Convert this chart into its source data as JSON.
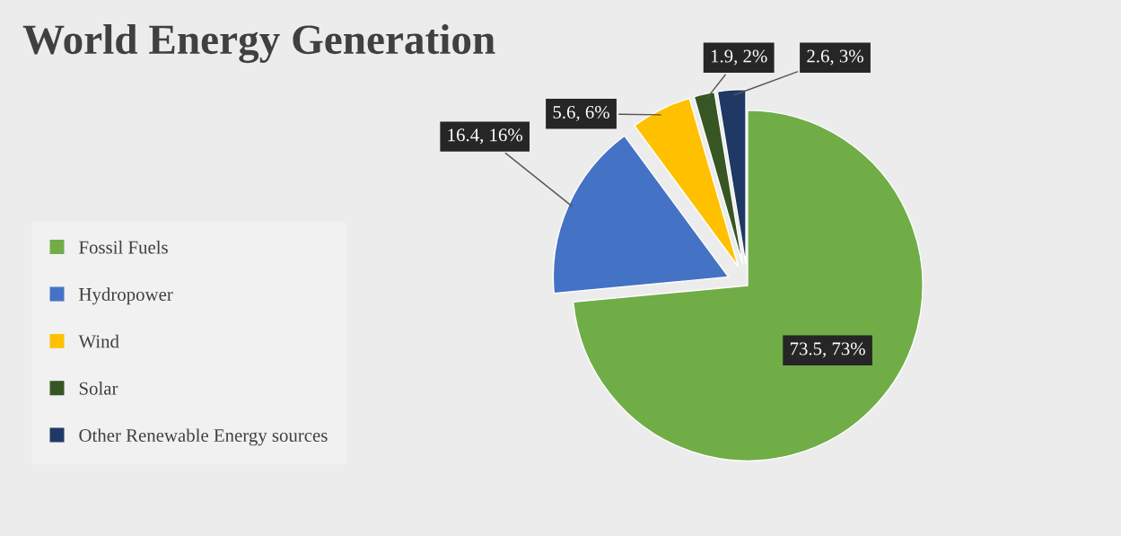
{
  "chart_data": {
    "type": "pie",
    "title": "World Energy Generation",
    "categories": [
      "Fossil Fuels",
      "Hydropower",
      "Wind",
      "Solar",
      "Other Renewable Energy sources"
    ],
    "values": [
      73.5,
      16.4,
      5.6,
      1.9,
      2.6
    ],
    "colors": [
      "#70ad47",
      "#4472c4",
      "#ffc000",
      "#375623",
      "#1f3864"
    ],
    "value_labels": [
      "73.5, 73%",
      "16.4, 16%",
      "5.6, 6%",
      "1.9, 2%",
      "2.6, 3%"
    ],
    "legend": "left"
  }
}
